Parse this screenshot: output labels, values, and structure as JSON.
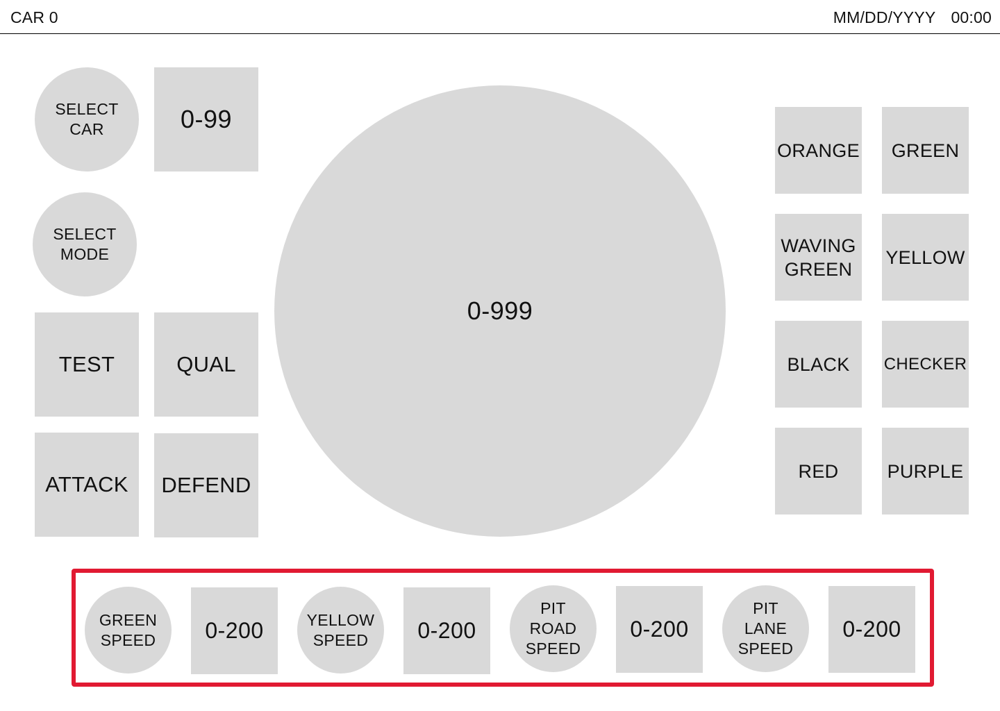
{
  "header": {
    "car_label": "CAR 0",
    "date": "MM/DD/YYYY",
    "time": "00:00"
  },
  "left_panel": {
    "select_car": "SELECT\nCAR",
    "car_number": "0-99",
    "select_mode": "SELECT\nMODE",
    "modes": [
      "TEST",
      "QUAL",
      "ATTACK",
      "DEFEND"
    ]
  },
  "center": {
    "main_value": "0-999"
  },
  "flags": [
    "ORANGE",
    "GREEN",
    "WAVING\nGREEN",
    "YELLOW",
    "BLACK",
    "CHECKER",
    "RED",
    "PURPLE"
  ],
  "speed_panel": {
    "items": [
      {
        "label": "GREEN\nSPEED",
        "value": "0-200"
      },
      {
        "label": "YELLOW\nSPEED",
        "value": "0-200"
      },
      {
        "label": "PIT\nROAD\nSPEED",
        "value": "0-200"
      },
      {
        "label": "PIT\nLANE\nSPEED",
        "value": "0-200"
      }
    ]
  },
  "colors": {
    "tile": "#d9d9d9",
    "highlight_border": "#e11a32",
    "text": "#111111"
  }
}
